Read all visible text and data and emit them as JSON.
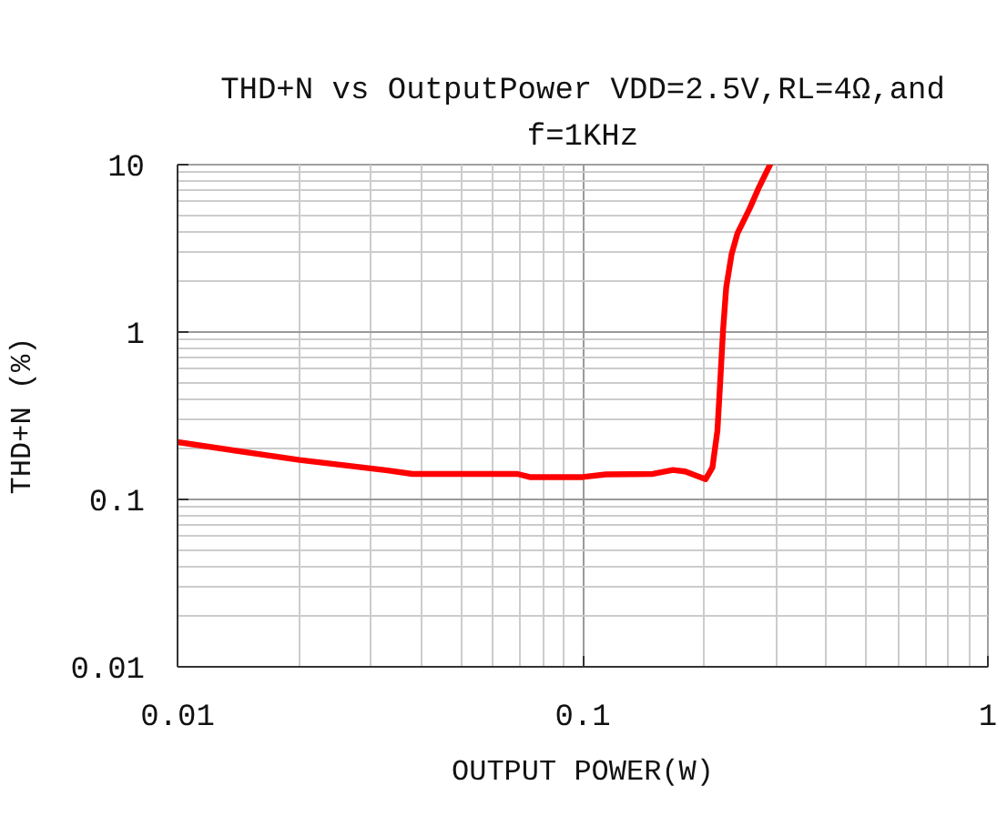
{
  "chart_data": {
    "type": "line",
    "title": "THD+N vs OutputPower VDD=2.5V,RL=4Ω,and f=1KHz",
    "xlabel": "OUTPUT POWER(W)",
    "ylabel": "THD+N (%)",
    "log": "xy",
    "x": [
      0.01,
      0.02,
      0.033,
      0.038,
      0.069,
      0.074,
      0.1,
      0.114,
      0.149,
      0.167,
      0.179,
      0.201,
      0.209,
      0.215,
      0.218,
      0.222,
      0.226,
      0.233,
      0.241,
      0.258,
      0.272,
      0.29
    ],
    "series": [
      {
        "color": "#ff0000",
        "values": [
          0.22,
          0.172,
          0.149,
          0.142,
          0.142,
          0.136,
          0.136,
          0.141,
          0.142,
          0.15,
          0.147,
          0.132,
          0.155,
          0.257,
          0.46,
          1.02,
          1.84,
          2.91,
          3.89,
          5.44,
          7.28,
          10
        ]
      }
    ],
    "xlim": [
      0.01,
      1
    ],
    "ylim": [
      0.01,
      10
    ],
    "xticks": [
      0.01,
      0.1,
      1
    ],
    "yticks": [
      0.01,
      0.1,
      1,
      10
    ],
    "grid": true,
    "line_style": "solid"
  }
}
